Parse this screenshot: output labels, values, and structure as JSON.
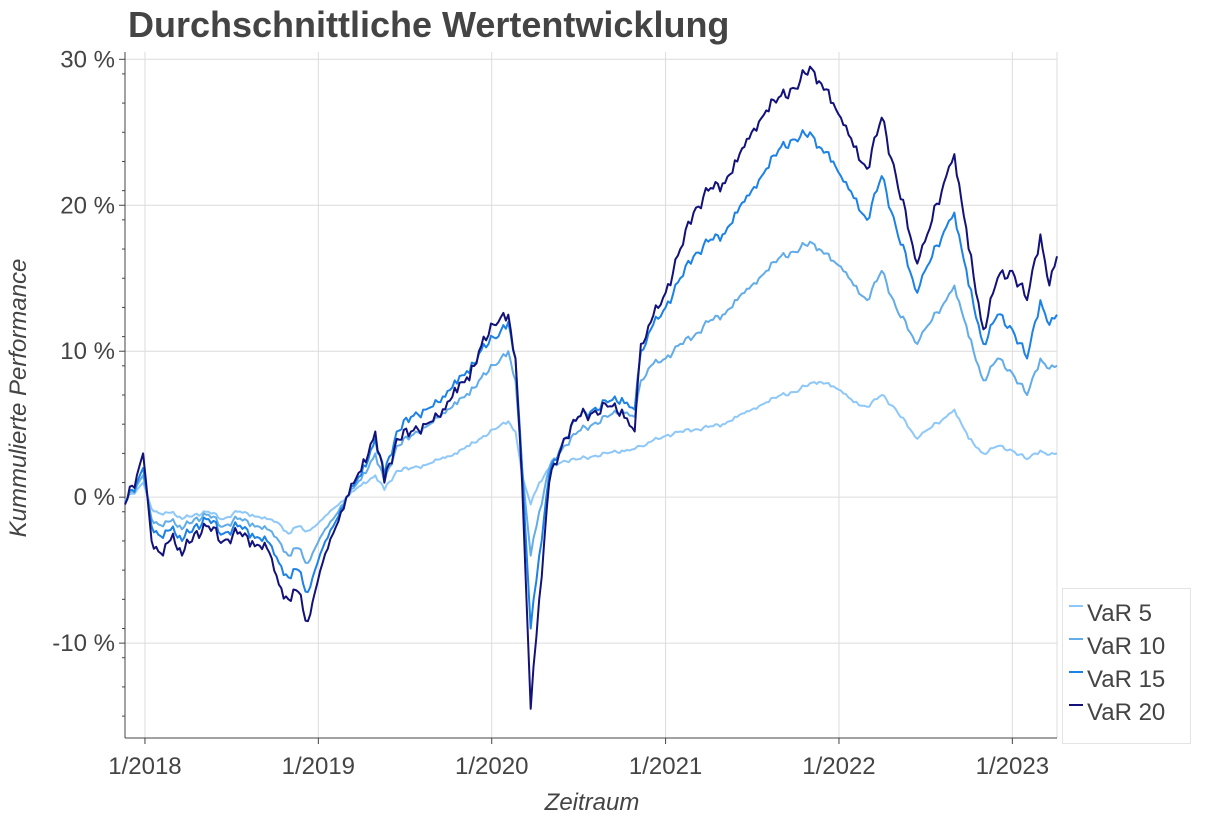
{
  "chart": {
    "title": "Durchschnittliche Wertentwicklung"
  },
  "chart_data": {
    "type": "line",
    "title": "Durchschnittliche Wertentwicklung",
    "xlabel": "Zeitraum",
    "ylabel": "Kummulierte Performance",
    "x_ticks": [
      "1/2018",
      "1/2019",
      "1/2020",
      "1/2021",
      "1/2022",
      "1/2023"
    ],
    "y_ticks": [
      "-10 %",
      "0 %",
      "10 %",
      "20 %",
      "30 %"
    ],
    "ylim": [
      -16.5,
      30.5
    ],
    "xlim": [
      "2017-11-20",
      "2023-04-05"
    ],
    "grid": true,
    "legend_position": "bottom-right",
    "x": [
      "2017-11-20",
      "2017-12-15",
      "2017-12-28",
      "2018-01-15",
      "2018-02-08",
      "2018-03-01",
      "2018-03-20",
      "2018-04-15",
      "2018-05-15",
      "2018-06-15",
      "2018-07-15",
      "2018-08-15",
      "2018-09-15",
      "2018-10-10",
      "2018-10-30",
      "2018-11-20",
      "2018-12-10",
      "2018-12-25",
      "2019-01-10",
      "2019-02-01",
      "2019-03-01",
      "2019-04-01",
      "2019-05-01",
      "2019-05-20",
      "2019-06-15",
      "2019-07-15",
      "2019-08-15",
      "2019-09-15",
      "2019-10-15",
      "2019-11-15",
      "2019-12-15",
      "2020-01-15",
      "2020-02-05",
      "2020-02-20",
      "2020-03-05",
      "2020-03-23",
      "2020-04-10",
      "2020-05-01",
      "2020-06-01",
      "2020-07-01",
      "2020-08-01",
      "2020-09-01",
      "2020-10-01",
      "2020-10-28",
      "2020-11-10",
      "2020-12-01",
      "2021-01-01",
      "2021-02-01",
      "2021-03-01",
      "2021-04-01",
      "2021-05-01",
      "2021-06-01",
      "2021-07-01",
      "2021-08-01",
      "2021-09-01",
      "2021-10-01",
      "2021-11-01",
      "2021-11-20",
      "2021-12-20",
      "2022-01-05",
      "2022-02-01",
      "2022-03-01",
      "2022-04-01",
      "2022-05-01",
      "2022-06-15",
      "2022-07-01",
      "2022-08-15",
      "2022-09-01",
      "2022-10-01",
      "2022-11-01",
      "2022-12-01",
      "2023-01-01",
      "2023-02-01",
      "2023-03-01",
      "2023-03-20",
      "2023-04-05"
    ],
    "series": [
      {
        "name": "VaR 5",
        "color": "#8ec8f8",
        "values": [
          -0.2,
          0.5,
          1.0,
          -0.8,
          -1.2,
          -1.0,
          -1.5,
          -1.2,
          -1.0,
          -1.5,
          -1.0,
          -1.2,
          -1.5,
          -1.8,
          -2.5,
          -2.0,
          -2.3,
          -2.0,
          -1.5,
          -0.8,
          0.0,
          0.8,
          1.5,
          0.5,
          1.8,
          2.0,
          2.2,
          2.6,
          3.0,
          3.5,
          4.2,
          4.8,
          5.2,
          4.5,
          1.5,
          -0.5,
          1.0,
          2.0,
          2.5,
          2.6,
          2.8,
          3.0,
          3.2,
          3.3,
          3.5,
          3.8,
          4.2,
          4.5,
          4.6,
          4.8,
          5.0,
          5.5,
          6.0,
          6.5,
          7.0,
          7.2,
          7.8,
          7.9,
          7.6,
          7.3,
          6.5,
          6.2,
          7.0,
          6.0,
          4.0,
          4.5,
          5.5,
          6.0,
          4.0,
          3.0,
          3.5,
          3.2,
          2.6,
          3.2,
          2.9,
          3.0
        ]
      },
      {
        "name": "VaR 10",
        "color": "#62ace8",
        "values": [
          -0.3,
          0.8,
          1.5,
          -1.5,
          -2.0,
          -1.5,
          -2.2,
          -1.5,
          -1.2,
          -2.0,
          -1.5,
          -1.8,
          -2.2,
          -3.0,
          -4.0,
          -3.5,
          -4.5,
          -3.5,
          -2.5,
          -1.5,
          0.0,
          1.2,
          3.0,
          1.0,
          3.5,
          4.2,
          4.8,
          5.5,
          6.5,
          7.0,
          8.5,
          9.2,
          10.0,
          8.0,
          2.0,
          -4.0,
          -1.0,
          2.0,
          3.5,
          4.5,
          5.0,
          5.5,
          6.0,
          5.5,
          8.0,
          9.0,
          9.5,
          10.5,
          11.0,
          12.0,
          12.5,
          13.5,
          14.5,
          15.5,
          16.5,
          16.8,
          17.5,
          17.0,
          16.2,
          15.8,
          14.5,
          13.5,
          15.5,
          13.0,
          10.5,
          11.5,
          13.5,
          14.5,
          11.0,
          8.0,
          9.5,
          8.5,
          7.0,
          9.5,
          8.8,
          9.0
        ]
      },
      {
        "name": "VaR 15",
        "color": "#1c82e6",
        "values": [
          -0.4,
          1.0,
          2.0,
          -2.0,
          -2.8,
          -2.0,
          -3.0,
          -2.0,
          -1.5,
          -2.5,
          -2.0,
          -2.5,
          -3.0,
          -4.5,
          -5.5,
          -5.0,
          -6.5,
          -5.0,
          -3.5,
          -2.0,
          0.0,
          1.5,
          4.0,
          1.5,
          4.5,
          5.5,
          6.0,
          6.5,
          8.0,
          8.5,
          10.5,
          11.0,
          12.0,
          9.5,
          2.0,
          -9.0,
          -4.0,
          1.5,
          4.0,
          5.5,
          6.0,
          6.5,
          6.8,
          6.0,
          10.0,
          11.5,
          13.0,
          15.0,
          16.5,
          17.5,
          18.0,
          19.5,
          21.0,
          22.5,
          24.0,
          24.5,
          25.0,
          24.0,
          23.0,
          22.0,
          20.5,
          19.0,
          22.0,
          18.5,
          14.0,
          15.5,
          18.5,
          19.5,
          14.5,
          10.5,
          12.5,
          11.5,
          9.5,
          13.5,
          11.8,
          12.5
        ]
      },
      {
        "name": "VaR 20",
        "color": "#12127a",
        "values": [
          -0.5,
          1.5,
          3.0,
          -3.0,
          -4.0,
          -2.5,
          -4.0,
          -2.5,
          -2.0,
          -3.0,
          -2.5,
          -3.0,
          -3.5,
          -6.0,
          -7.0,
          -6.5,
          -8.5,
          -6.5,
          -4.5,
          -2.5,
          0.0,
          1.8,
          4.5,
          1.0,
          4.0,
          4.5,
          5.0,
          5.5,
          7.5,
          8.0,
          11.0,
          12.0,
          12.5,
          9.5,
          1.0,
          -14.5,
          -7.0,
          1.0,
          4.0,
          5.5,
          5.8,
          6.2,
          6.0,
          4.5,
          10.5,
          12.0,
          14.0,
          17.0,
          19.5,
          21.0,
          21.5,
          23.0,
          25.0,
          26.5,
          27.5,
          28.0,
          29.5,
          28.5,
          27.0,
          26.0,
          24.0,
          22.5,
          26.0,
          22.0,
          16.0,
          17.5,
          22.0,
          23.5,
          17.0,
          11.5,
          15.0,
          15.5,
          13.5,
          18.0,
          14.5,
          16.5
        ]
      }
    ]
  }
}
